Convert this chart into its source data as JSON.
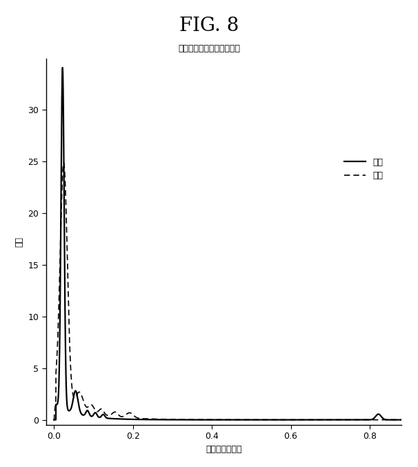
{
  "title": "FIG. 8",
  "subtitle": "性別に基づく注視の共同性",
  "xlabel": "注視の総共同性",
  "ylabel": "密度",
  "legend_male": "男性",
  "legend_female": "女性",
  "xlim": [
    -0.02,
    0.88
  ],
  "ylim": [
    -0.5,
    35
  ],
  "xticks": [
    0.0,
    0.2,
    0.4,
    0.6,
    0.8
  ],
  "yticks": [
    0,
    5,
    10,
    15,
    20,
    25,
    30
  ],
  "background_color": "#ffffff",
  "line_color_male": "#000000",
  "line_color_female": "#000000",
  "title_fontsize": 20,
  "subtitle_fontsize": 9,
  "axis_label_fontsize": 9,
  "tick_fontsize": 9,
  "legend_fontsize": 9
}
